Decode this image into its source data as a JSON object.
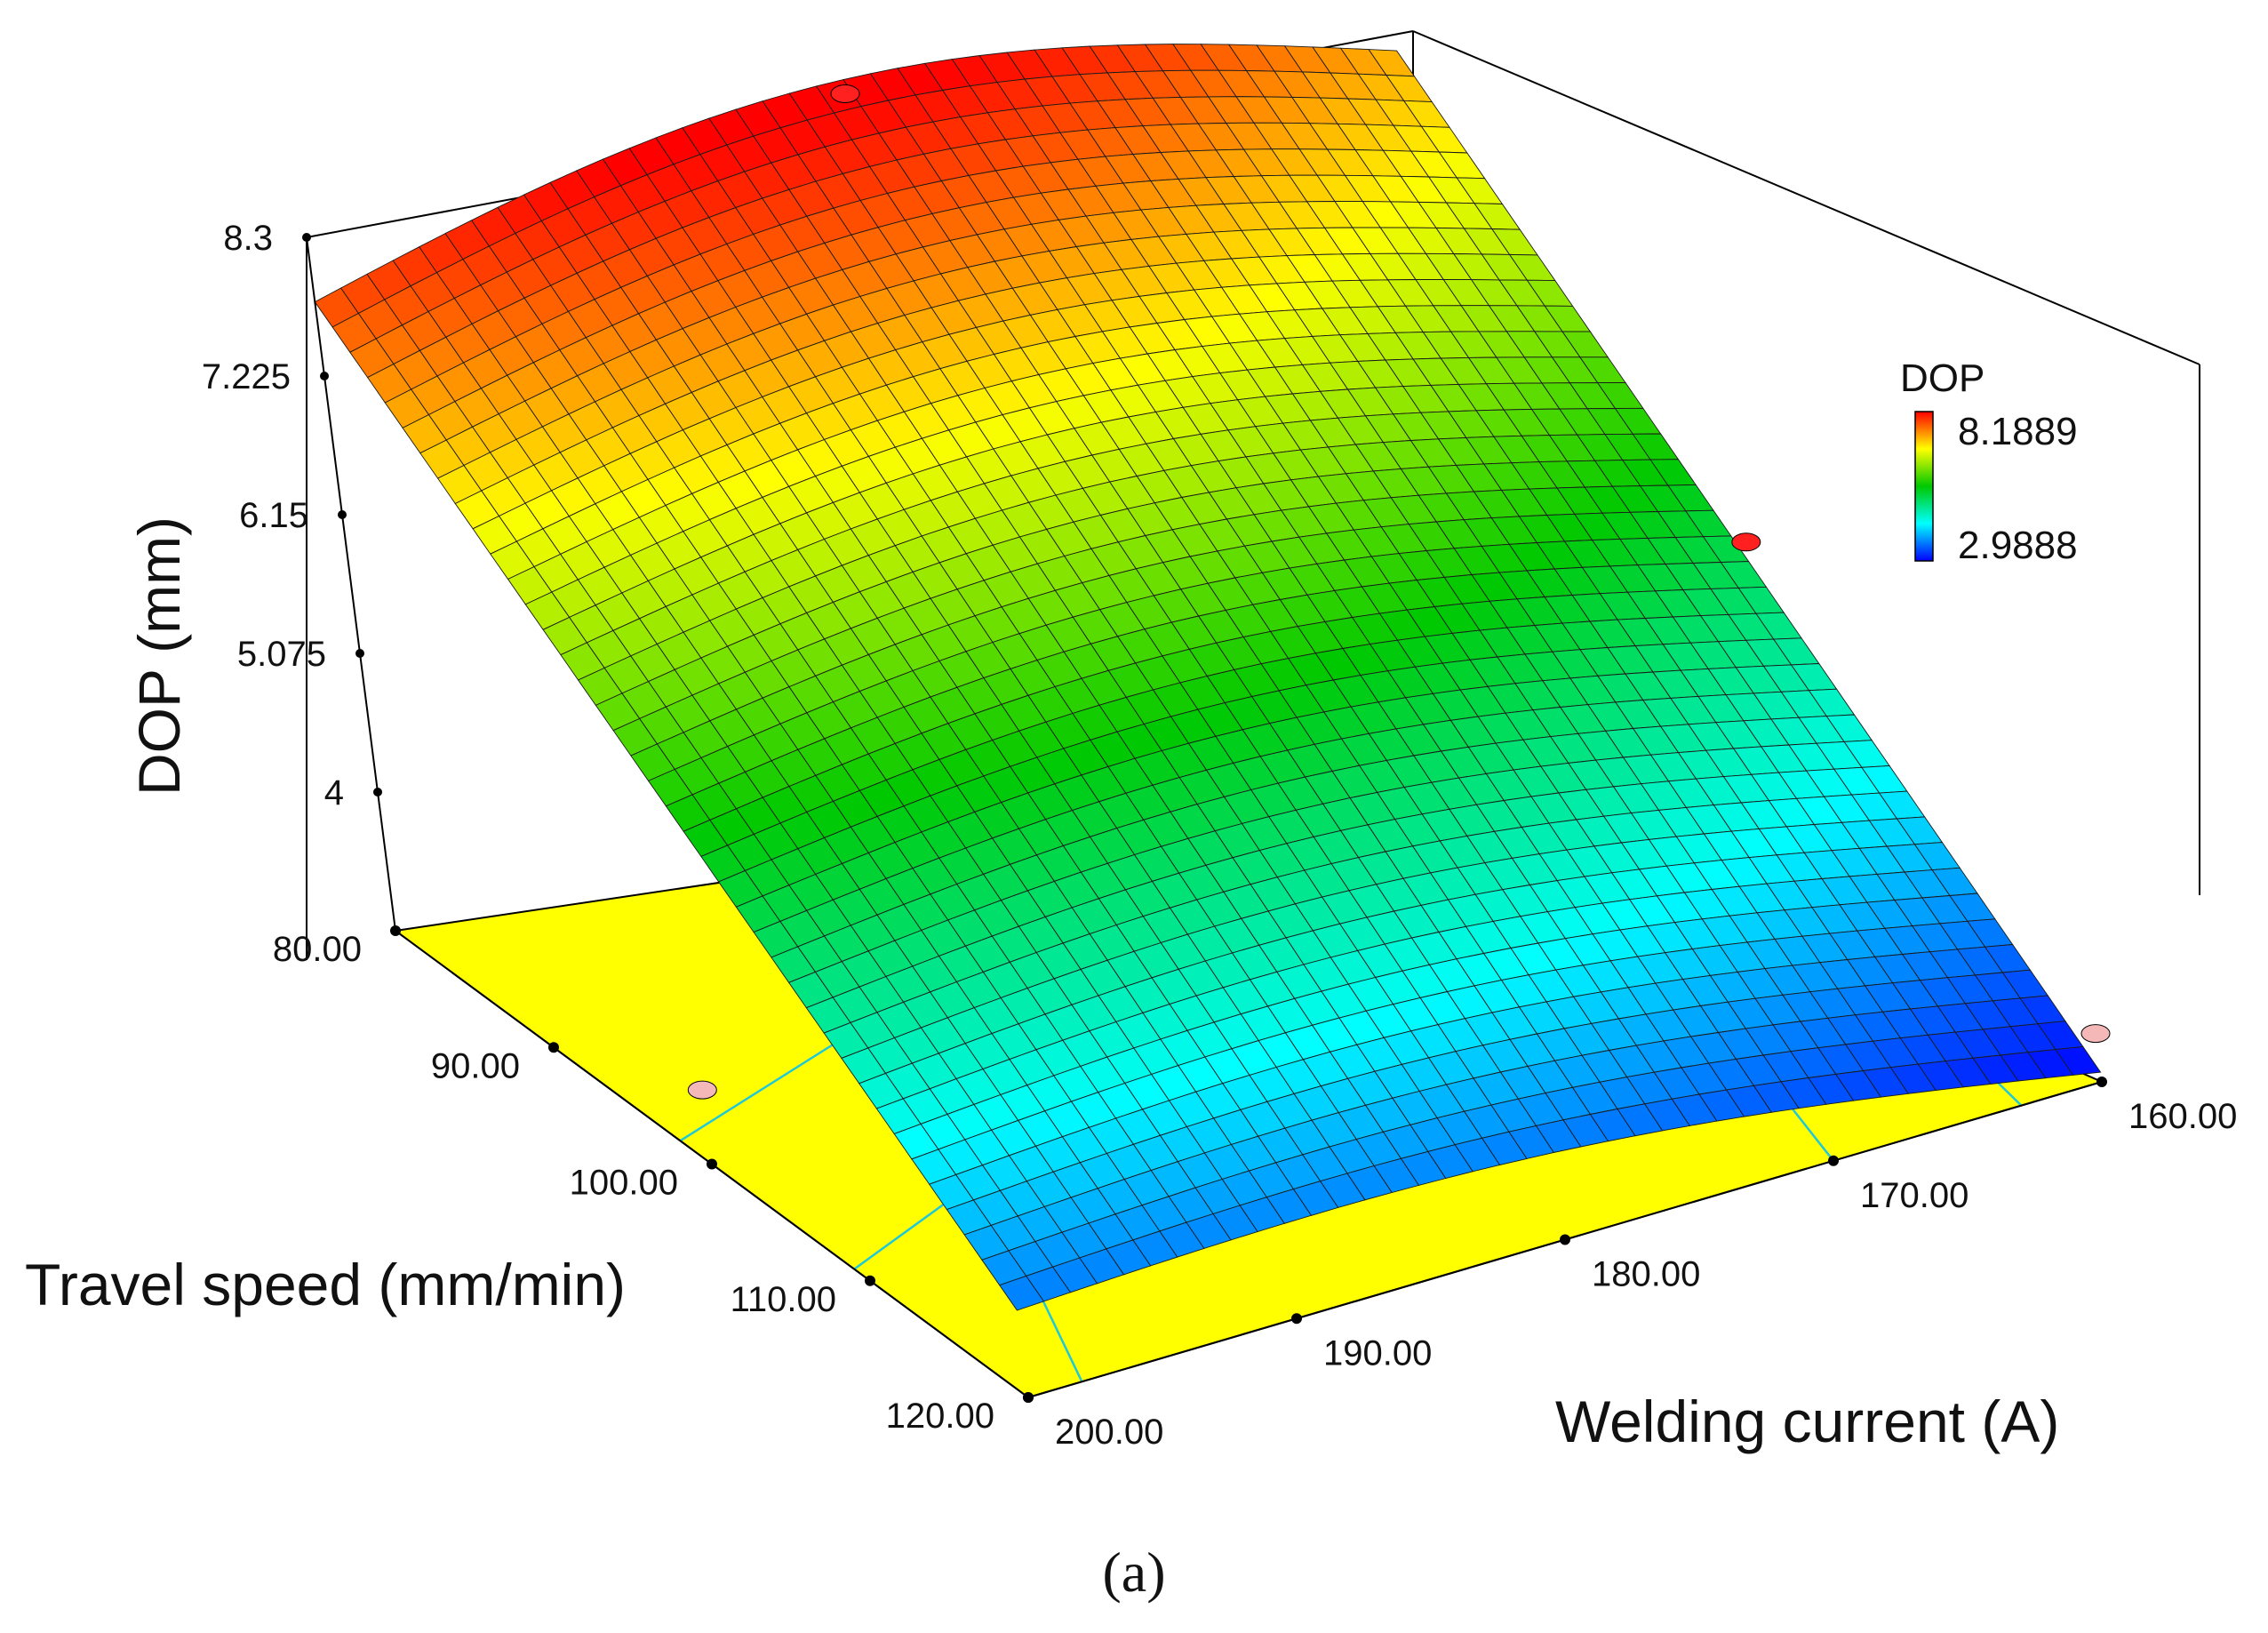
{
  "chart_data": {
    "type": "surface3d",
    "z_label": "DOP (mm)",
    "x_label": "Welding current (A)",
    "y_label": "Travel speed (mm/min)",
    "z_ticks": [
      "4",
      "5.075",
      "6.15",
      "7.225",
      "8.3"
    ],
    "x_ticks": [
      "160.00",
      "170.00",
      "180.00",
      "190.00",
      "200.00"
    ],
    "y_ticks": [
      "80.00",
      "90.00",
      "100.00",
      "110.00",
      "120.00"
    ],
    "x_range": [
      160,
      200
    ],
    "y_range": [
      80,
      120
    ],
    "z_range": [
      2.925,
      8.3
    ],
    "legend": {
      "title": "DOP",
      "max_label": "8.1889",
      "min_label": "2.9888",
      "max": 8.1889,
      "min": 2.9888
    },
    "surface_corners": [
      {
        "current": 200,
        "speed": 80,
        "dop": 7.8
      },
      {
        "current": 160,
        "speed": 80,
        "dop": 7.3
      },
      {
        "current": 160,
        "speed": 120,
        "dop": 3.0
      },
      {
        "current": 200,
        "speed": 120,
        "dop": 3.6
      }
    ],
    "surface_peak": {
      "current": 188,
      "speed": 80,
      "dop": 8.19
    },
    "design_points": [
      {
        "current": 180,
        "speed": 80,
        "dop": 8.19,
        "position": "above surface"
      },
      {
        "current": 160,
        "speed": 100,
        "dop": 5.3,
        "position": "above surface"
      },
      {
        "current": 200,
        "speed": 100,
        "dop": 3.5,
        "position": "below surface"
      },
      {
        "current": 160,
        "speed": 120,
        "dop": 3.3,
        "position": "below surface"
      }
    ],
    "colors": {
      "high": "#ff0000",
      "mid_high": "#ffff00",
      "mid": "#00c800",
      "mid_low": "#00ffff",
      "low": "#0000ff",
      "floor": "#ffff00",
      "contour": "#20c8d8",
      "legend_max_text": "#ff0000",
      "legend_min_text": "#0000ff"
    }
  },
  "caption": "(a)"
}
